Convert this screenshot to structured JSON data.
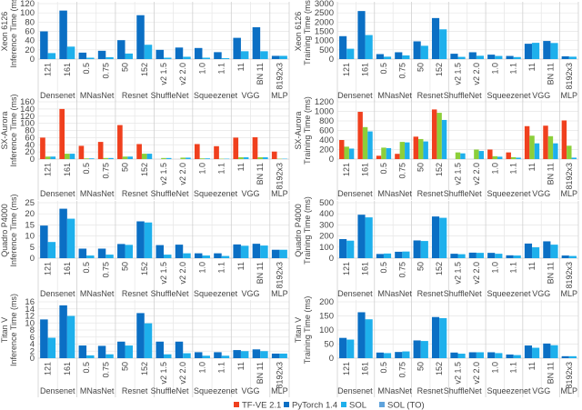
{
  "chart_data": {
    "type": "bar",
    "categories": [
      {
        "group": "Densenet",
        "label": "121"
      },
      {
        "group": "Densenet",
        "label": "161"
      },
      {
        "group": "MNasNet",
        "label": "0.5"
      },
      {
        "group": "MNasNet",
        "label": "0.75"
      },
      {
        "group": "Resnet",
        "label": "50"
      },
      {
        "group": "Resnet",
        "label": "152"
      },
      {
        "group": "ShuffleNet",
        "label": "v2 1.5"
      },
      {
        "group": "ShuffleNet",
        "label": "v2 2.0"
      },
      {
        "group": "Squeezenet",
        "label": "1.0"
      },
      {
        "group": "Squeezenet",
        "label": "1.1"
      },
      {
        "group": "VGG",
        "label": "11"
      },
      {
        "group": "VGG",
        "label": "BN 11"
      },
      {
        "group": "MLP",
        "label": "8192x3"
      }
    ],
    "groups": [
      "Densenet",
      "MNasNet",
      "Resnet",
      "ShuffleNet",
      "Squeezenet",
      "VGG",
      "MLP"
    ],
    "legend": {
      "placement": "bottom",
      "entries": [
        {
          "name": "TF-VE 2.1",
          "color": "#f0401e"
        },
        {
          "name": "PyTorch 1.4",
          "color": "#0b6fc4"
        },
        {
          "name": "SOL",
          "color": "#1eb0ec"
        },
        {
          "name": "SOL (TO)",
          "color": "#5fa3dc"
        }
      ]
    },
    "grid": true,
    "panels": [
      {
        "ylabel": [
          "Xeon 6126",
          "Inference Time (ms)"
        ],
        "ylim": [
          0,
          120
        ],
        "yticks": [
          0,
          20,
          40,
          60,
          80,
          100,
          120
        ],
        "series": [
          {
            "name": "PyTorch 1.4",
            "color": "#0b6fc4",
            "values": [
              60,
              105,
              14,
              18,
              41,
              95,
              20,
              25,
              24,
              15,
              46,
              69,
              7
            ]
          },
          {
            "name": "SOL",
            "color": "#1eb0ec",
            "values": [
              13,
              27,
              3,
              4,
              12,
              31,
              3,
              5,
              3,
              2,
              17,
              17,
              7
            ]
          }
        ]
      },
      {
        "ylabel": [
          "Xeon 6126",
          "Training Time (ms)"
        ],
        "ylim": [
          0,
          3000
        ],
        "yticks": [
          0,
          500,
          1000,
          1500,
          2000,
          2500,
          3000
        ],
        "series": [
          {
            "name": "PyTorch 1.4",
            "color": "#0b6fc4",
            "values": [
              1240,
              2600,
              270,
              370,
              960,
              2220,
              290,
              370,
              240,
              170,
              830,
              980,
              150
            ]
          },
          {
            "name": "SOL",
            "color": "#1eb0ec",
            "values": [
              560,
              1300,
              130,
              200,
              720,
              1610,
              120,
              180,
              170,
              110,
              880,
              870,
              130
            ]
          }
        ]
      },
      {
        "ylabel": [
          "SX-Aurora",
          "Inference Time (ms)"
        ],
        "ylim": [
          0,
          160
        ],
        "yticks": [
          0,
          20,
          40,
          60,
          80,
          100,
          120,
          140,
          160
        ],
        "series": [
          {
            "name": "TF-VE 2.1",
            "color": "#f0401e",
            "values": [
              60,
              140,
              37,
              48,
              95,
              42,
              null,
              null,
              42,
              36,
              60,
              61,
              21
            ]
          },
          {
            "name": "SOL",
            "color": "#8ccf3a",
            "values": [
              7,
              15,
              2,
              3,
              7,
              15,
              3,
              4,
              2,
              1,
              5,
              5,
              1
            ]
          },
          {
            "name": "SOL (TO)",
            "color": "#1eb0ec",
            "values": [
              7,
              15,
              2,
              3,
              7,
              15,
              3,
              4,
              2,
              1,
              5,
              5,
              1
            ]
          }
        ]
      },
      {
        "ylabel": [
          "SX-Aurora",
          "Training Time (ms)"
        ],
        "ylim": [
          0,
          1200
        ],
        "yticks": [
          0,
          200,
          400,
          600,
          800,
          1000,
          1200
        ],
        "series": [
          {
            "name": "TF-VE 2.1",
            "color": "#f0401e",
            "values": [
              400,
              990,
              70,
              110,
              470,
              1040,
              null,
              null,
              200,
              140,
              690,
              700,
              810
            ]
          },
          {
            "name": "SOL",
            "color": "#8ccf3a",
            "values": [
              260,
              670,
              240,
              360,
              420,
              970,
              140,
              200,
              60,
              40,
              490,
              480,
              280
            ]
          },
          {
            "name": "SOL (TO)",
            "color": "#1eb0ec",
            "values": [
              220,
              580,
              230,
              350,
              370,
              820,
              120,
              170,
              50,
              30,
              330,
              330,
              30
            ]
          }
        ]
      },
      {
        "ylabel": [
          "Quadro P4000",
          "Inference Time (ms)"
        ],
        "ylim": [
          0,
          25
        ],
        "yticks": [
          0,
          5,
          10,
          15,
          20,
          25
        ],
        "series": [
          {
            "name": "PyTorch 1.4",
            "color": "#0b6fc4",
            "values": [
              14.7,
              22.3,
              4.3,
              4.3,
              6.4,
              16.6,
              5.9,
              6.1,
              2.2,
              2.2,
              6.2,
              6.5,
              3.8
            ]
          },
          {
            "name": "SOL",
            "color": "#1eb0ec",
            "values": [
              7.3,
              17.8,
              1.2,
              1.6,
              6.0,
              16.1,
              1.6,
              2.2,
              1.2,
              1.0,
              5.6,
              5.7,
              3.8
            ]
          }
        ]
      },
      {
        "ylabel": [
          "Quadro P4000",
          "Training Time (ms)"
        ],
        "ylim": [
          0,
          500
        ],
        "yticks": [
          0,
          100,
          200,
          300,
          400,
          500
        ],
        "series": [
          {
            "name": "PyTorch 1.4",
            "color": "#0b6fc4",
            "values": [
              172,
              392,
              38,
              58,
              160,
              376,
              40,
              50,
              48,
              26,
              132,
              152,
              24
            ]
          },
          {
            "name": "SOL",
            "color": "#1eb0ec",
            "values": [
              158,
              368,
              42,
              60,
              155,
              364,
              36,
              48,
              40,
              24,
              98,
              122,
              20
            ]
          }
        ]
      },
      {
        "ylabel": [
          "Titan V",
          "Inference Time (ms)"
        ],
        "ylim": [
          0,
          16
        ],
        "yticks": [
          0,
          2,
          4,
          6,
          8,
          10,
          12,
          14,
          16
        ],
        "series": [
          {
            "name": "PyTorch 1.4",
            "color": "#0b6fc4",
            "values": [
              11,
              15,
              3.6,
              3.5,
              4.7,
              12.8,
              4.7,
              4.7,
              1.7,
              1.7,
              2.3,
              2.5,
              1.3
            ]
          },
          {
            "name": "SOL",
            "color": "#1eb0ec",
            "values": [
              5.8,
              12,
              0.8,
              1.1,
              3.6,
              9.9,
              1.1,
              1.4,
              0.7,
              0.7,
              2.0,
              2.0,
              1.3
            ]
          }
        ]
      },
      {
        "ylabel": [
          "Titan V",
          "Training Time (ms)"
        ],
        "ylim": [
          0,
          200
        ],
        "yticks": [
          0,
          50,
          100,
          150,
          200
        ],
        "series": [
          {
            "name": "PyTorch 1.4",
            "color": "#0b6fc4",
            "values": [
              72,
              163,
              20,
              22,
              63,
              146,
              20,
              21,
              21,
              13,
              45,
              52,
              7
            ]
          },
          {
            "name": "SOL",
            "color": "#1eb0ec",
            "values": [
              66,
              138,
              18,
              24,
              61,
              142,
              16,
              21,
              18,
              11,
              37,
              46,
              7
            ]
          }
        ]
      }
    ]
  }
}
